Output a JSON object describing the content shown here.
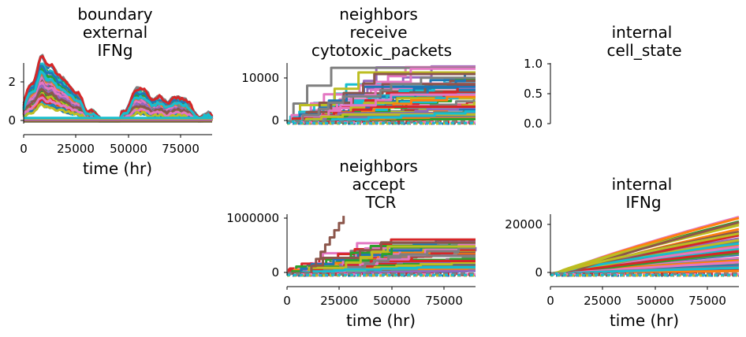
{
  "chart_data": [
    {
      "id": "boundary_ifng",
      "type": "line",
      "title": [
        "boundary",
        "external",
        "IFNg"
      ],
      "xlabel": "time (hr)",
      "ylabel": "",
      "xlim": [
        0,
        90000
      ],
      "ylim": [
        -0.1,
        2.9
      ],
      "xticks": [
        0,
        25000,
        50000,
        75000
      ],
      "xticklabels": [
        "0",
        "25000",
        "50000",
        "75000"
      ],
      "yticks": [
        0,
        2
      ],
      "yticklabels": [
        "0",
        "2"
      ],
      "series_count": 60,
      "peaks": [
        {
          "x": 3000,
          "y": 1.6
        },
        {
          "x": 8500,
          "y": 2.8
        },
        {
          "x": 13000,
          "y": 1.9
        },
        {
          "x": 17000,
          "y": 1.6
        },
        {
          "x": 22000,
          "y": 1.4
        },
        {
          "x": 27000,
          "y": 0.9
        },
        {
          "x": 33000,
          "y": 0.5
        },
        {
          "x": 47000,
          "y": 0.4
        },
        {
          "x": 53000,
          "y": 1.2
        },
        {
          "x": 58000,
          "y": 1.3
        },
        {
          "x": 65000,
          "y": 1.1
        },
        {
          "x": 72000,
          "y": 1.0
        },
        {
          "x": 78000,
          "y": 0.9
        },
        {
          "x": 88000,
          "y": 0.4
        }
      ]
    },
    {
      "id": "cytotoxic_packets",
      "type": "line",
      "title": [
        "neighbors",
        "receive",
        "cytotoxic_packets"
      ],
      "xlabel": "",
      "ylabel": "",
      "xlim": [
        0,
        90000
      ],
      "ylim": [
        -500,
        13500
      ],
      "xticks": [],
      "xticklabels": [],
      "yticks": [
        0,
        10000
      ],
      "yticklabels": [
        "0",
        "10000"
      ],
      "series_count": 60,
      "final_range": [
        500,
        12800
      ]
    },
    {
      "id": "cell_state",
      "type": "line",
      "title": [
        "internal",
        "cell_state"
      ],
      "xlabel": "",
      "ylabel": "",
      "xlim": [
        0,
        90000
      ],
      "ylim": [
        0,
        1
      ],
      "xticks": [],
      "xticklabels": [],
      "yticks": [
        0,
        0.5,
        1
      ],
      "yticklabels": [
        "0.0",
        "0.5",
        "1.0"
      ],
      "series_count": 0
    },
    {
      "id": "accept_tcr",
      "type": "line",
      "title": [
        "neighbors",
        "accept",
        "TCR"
      ],
      "xlabel": "time (hr)",
      "ylabel": "",
      "xlim": [
        0,
        90000
      ],
      "ylim": [
        -40000,
        1050000
      ],
      "xticks": [
        0,
        25000,
        50000,
        75000
      ],
      "xticklabels": [
        "0",
        "25000",
        "50000",
        "75000"
      ],
      "yticks": [
        0,
        1000000
      ],
      "yticklabels": [
        "0",
        "1000000"
      ],
      "series_count": 60,
      "final_range": [
        50000,
        620000
      ],
      "outlier": {
        "x_end": 27000,
        "y_end": 1020000
      }
    },
    {
      "id": "internal_ifng",
      "type": "line",
      "title": [
        "internal",
        "IFNg"
      ],
      "xlabel": "time (hr)",
      "ylabel": "",
      "xlim": [
        0,
        90000
      ],
      "ylim": [
        -800,
        23500
      ],
      "xticks": [
        0,
        25000,
        50000,
        75000
      ],
      "xticklabels": [
        "0",
        "25000",
        "50000",
        "75000"
      ],
      "yticks": [
        0,
        20000
      ],
      "yticklabels": [
        "0",
        "20000"
      ],
      "series_count": 60,
      "final_range": [
        1000,
        22800
      ]
    }
  ],
  "palette": [
    "#1f77b4",
    "#ff7f0e",
    "#2ca02c",
    "#d62728",
    "#9467bd",
    "#8c564b",
    "#e377c2",
    "#7f7f7f",
    "#bcbd22",
    "#17becf"
  ]
}
